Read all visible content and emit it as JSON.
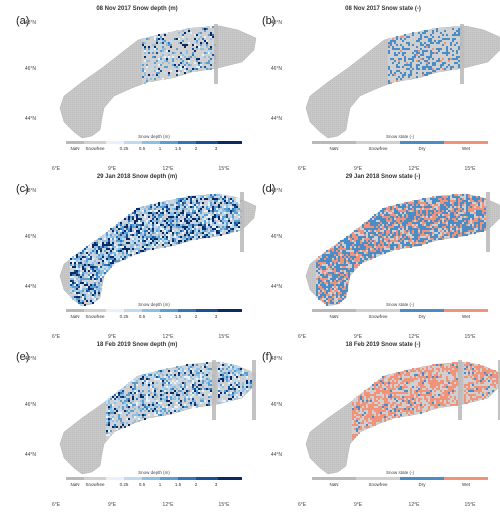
{
  "colors": {
    "nan": "#b9b9b9",
    "snowfree": "#d0d0d0",
    "domain": "#c4c4c4",
    "dry": "#4a8cc6",
    "wet": "#f0937a",
    "depth_ramp": [
      "#e8f1fa",
      "#c2daf0",
      "#8fbfe3",
      "#5a9fd1",
      "#2f78b8",
      "#1a4f96",
      "#0a2a63"
    ]
  },
  "axes": {
    "lat_labels": [
      "48°N",
      "46°N",
      "44°N"
    ],
    "lon_labels": [
      "6°E",
      "9°E",
      "12°E",
      "15°E"
    ]
  },
  "depth_legend": {
    "title": "Snow depth (m)",
    "labels": [
      "NaN",
      "Snowfree",
      "0.25",
      "0.5",
      "1",
      "1.5",
      "2",
      "3"
    ]
  },
  "state_legend": {
    "title": "Snow state (-)",
    "labels": [
      "NaN",
      "Snowfree",
      "Dry",
      "Wet"
    ]
  },
  "panels": [
    {
      "label": "(a)",
      "title": "08 Nov 2017 Snow depth (m)",
      "kind": "depth",
      "coverage": "low",
      "swath": "narrow"
    },
    {
      "label": "(b)",
      "title": "08 Nov 2017 Snow state (-)",
      "kind": "state",
      "coverage": "low",
      "swath": "narrow"
    },
    {
      "label": "(c)",
      "title": "29 Jan 2018 Snow depth (m)",
      "kind": "depth",
      "coverage": "high",
      "swath": "wide"
    },
    {
      "label": "(d)",
      "title": "29 Jan 2018 Snow state (-)",
      "kind": "state",
      "coverage": "high",
      "swath": "wide"
    },
    {
      "label": "(e)",
      "title": "18 Feb 2019 Snow depth (m)",
      "kind": "depth",
      "coverage": "mid",
      "swath": "east"
    },
    {
      "label": "(f)",
      "title": "18 Feb 2019 Snow state (-)",
      "kind": "state",
      "coverage": "mid",
      "swath": "east"
    }
  ]
}
